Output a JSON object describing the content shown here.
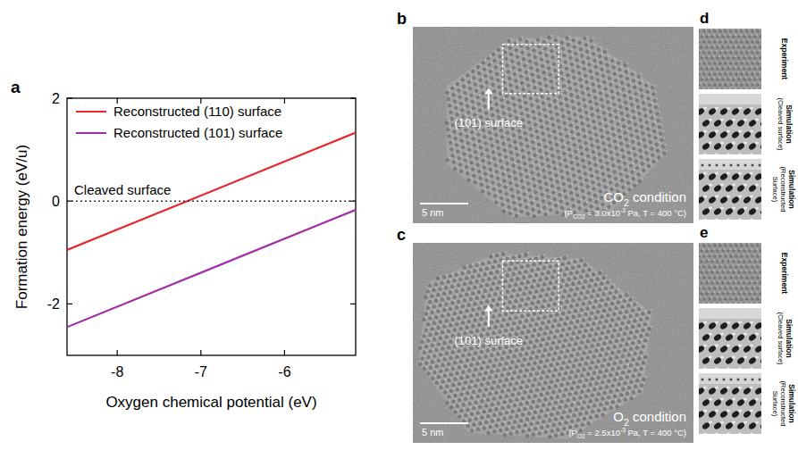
{
  "panel_a_letter": "a",
  "chart_data": {
    "type": "line",
    "xlabel": "Oxygen chemical potential (eV)",
    "ylabel": "Formation energy (eV/u)",
    "x": [
      -8.6,
      -5.15
    ],
    "series": [
      {
        "name": "Reconstructed (110) surface",
        "color": "#e8262b",
        "values": [
          -0.95,
          1.33
        ]
      },
      {
        "name": "Reconstructed (101) surface",
        "color": "#a12ea8",
        "values": [
          -2.45,
          -0.17
        ]
      },
      {
        "name": "Cleaved surface",
        "color": "#333333",
        "line_style": "dotted",
        "values": [
          0,
          0
        ]
      }
    ],
    "xlim": [
      -8.6,
      -5.15
    ],
    "xticks": [
      -8,
      -7,
      -6
    ],
    "ylim": [
      -3,
      2
    ],
    "yticks": [
      -2,
      0,
      2
    ],
    "legend": "upper left"
  },
  "tem_images": [
    {
      "letter": "b",
      "surface_label": "(101) surface",
      "title": [
        {
          "text": "CO"
        },
        {
          "text": "2",
          "sub": true
        },
        {
          "text": " condition"
        }
      ],
      "conditions": [
        {
          "text": "(P"
        },
        {
          "text": "CO2",
          "sub": true
        },
        {
          "text": " = 3.0x10"
        },
        {
          "text": "-3",
          "sup": true
        },
        {
          "text": " Pa, T = 400 °C)"
        }
      ],
      "scale_bar": "5 nm"
    },
    {
      "letter": "c",
      "surface_label": "(101) surface",
      "title": [
        {
          "text": "O"
        },
        {
          "text": "2",
          "sub": true
        },
        {
          "text": " condition"
        }
      ],
      "conditions": [
        {
          "text": "(P"
        },
        {
          "text": "O2",
          "sub": true
        },
        {
          "text": " = 2.5x10"
        },
        {
          "text": "-3",
          "sup": true
        },
        {
          "text": " Pa, T = 400 °C)"
        }
      ],
      "scale_bar": "5 nm"
    }
  ],
  "profiles": [
    {
      "letter": "d",
      "rows": [
        {
          "title": "Experiment"
        },
        {
          "title": "Simulation",
          "detail": "(Cleaved surface)"
        },
        {
          "title": "Simulation",
          "detail": "(Reconstructed Surface)"
        }
      ]
    },
    {
      "letter": "e",
      "rows": [
        {
          "title": "Experiment"
        },
        {
          "title": "Simulation",
          "detail": "(Cleaved surface)"
        },
        {
          "title": "Simulation",
          "detail": "(Reconstructed Surface)"
        }
      ]
    }
  ]
}
